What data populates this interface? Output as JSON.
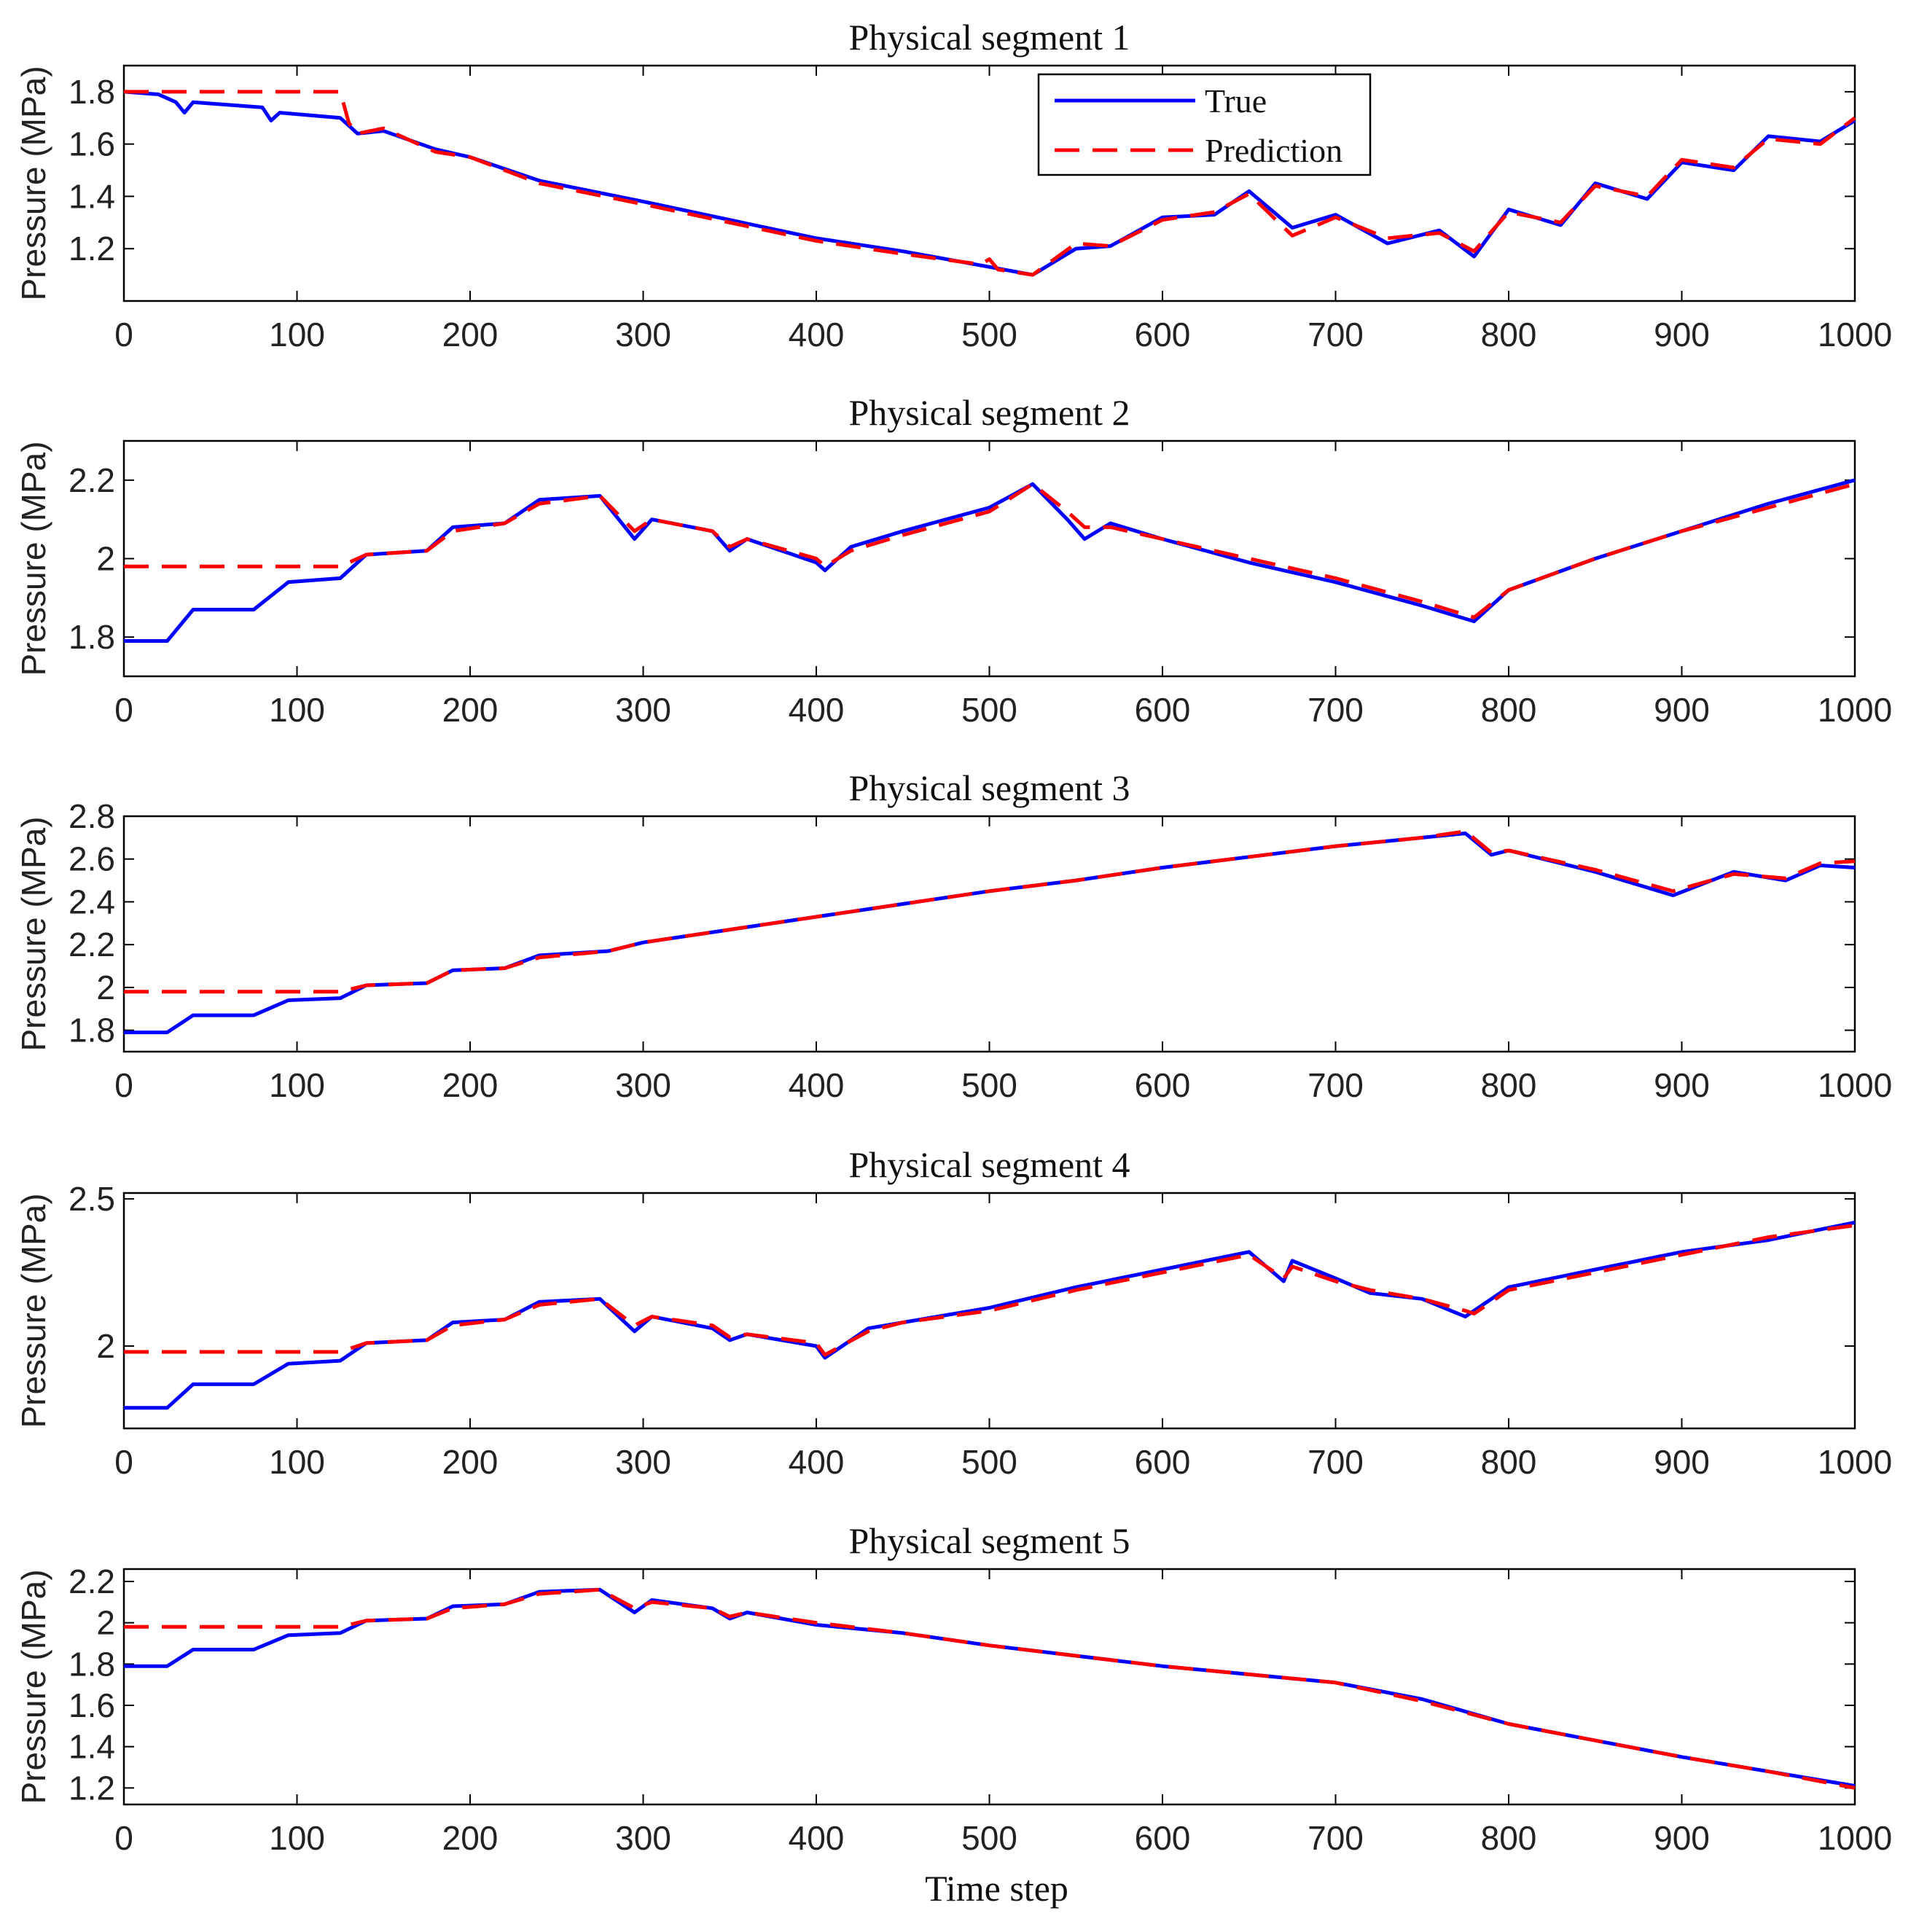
{
  "chart_data": [
    {
      "type": "line",
      "title": "Physical segment 1",
      "xlabel": "",
      "ylabel": "Pressure (MPa)",
      "xlim": [
        0,
        1000
      ],
      "ylim": [
        1.0,
        1.9
      ],
      "xticks": [
        0,
        100,
        200,
        300,
        400,
        500,
        600,
        700,
        800,
        900,
        1000
      ],
      "yticks": [
        1.2,
        1.4,
        1.6,
        1.8
      ],
      "ytick_labels": [
        "1.2",
        "1.4",
        "1.6",
        "1.8"
      ],
      "legend": {
        "placement": "top-center",
        "entries": [
          "True",
          "Prediction"
        ]
      },
      "series": [
        {
          "name": "True",
          "color": "#0000ff",
          "dash": "solid",
          "x": [
            0,
            20,
            30,
            35,
            40,
            80,
            85,
            90,
            125,
            130,
            135,
            150,
            180,
            200,
            240,
            300,
            400,
            450,
            500,
            525,
            550,
            570,
            600,
            630,
            650,
            675,
            700,
            730,
            760,
            780,
            800,
            830,
            850,
            880,
            900,
            930,
            950,
            980,
            1000
          ],
          "y": [
            1.8,
            1.79,
            1.76,
            1.72,
            1.76,
            1.74,
            1.69,
            1.72,
            1.7,
            1.67,
            1.64,
            1.65,
            1.58,
            1.55,
            1.46,
            1.38,
            1.24,
            1.19,
            1.13,
            1.1,
            1.2,
            1.21,
            1.32,
            1.33,
            1.42,
            1.28,
            1.33,
            1.22,
            1.27,
            1.17,
            1.35,
            1.29,
            1.45,
            1.39,
            1.53,
            1.5,
            1.63,
            1.61,
            1.69
          ]
        },
        {
          "name": "Prediction",
          "color": "#ff0000",
          "dash": "dashed",
          "x": [
            0,
            125,
            130,
            135,
            150,
            180,
            200,
            240,
            300,
            400,
            450,
            495,
            500,
            505,
            525,
            550,
            570,
            600,
            630,
            650,
            675,
            700,
            730,
            760,
            780,
            800,
            830,
            850,
            880,
            900,
            930,
            950,
            980,
            1000
          ],
          "y": [
            1.8,
            1.8,
            1.68,
            1.64,
            1.66,
            1.57,
            1.55,
            1.45,
            1.37,
            1.23,
            1.18,
            1.14,
            1.16,
            1.12,
            1.1,
            1.22,
            1.21,
            1.31,
            1.34,
            1.41,
            1.25,
            1.32,
            1.24,
            1.26,
            1.19,
            1.34,
            1.3,
            1.44,
            1.4,
            1.54,
            1.51,
            1.62,
            1.6,
            1.7
          ]
        }
      ]
    },
    {
      "type": "line",
      "title": "Physical segment 2",
      "xlabel": "",
      "ylabel": "Pressure (MPa)",
      "xlim": [
        0,
        1000
      ],
      "ylim": [
        1.7,
        2.3
      ],
      "xticks": [
        0,
        100,
        200,
        300,
        400,
        500,
        600,
        700,
        800,
        900,
        1000
      ],
      "yticks": [
        1.8,
        2.0,
        2.2
      ],
      "ytick_labels": [
        "1.8",
        "2",
        "2.2"
      ],
      "series": [
        {
          "name": "True",
          "color": "#0000ff",
          "dash": "solid",
          "x": [
            0,
            25,
            40,
            75,
            95,
            125,
            140,
            175,
            190,
            220,
            240,
            275,
            295,
            305,
            340,
            350,
            360,
            400,
            405,
            420,
            450,
            500,
            525,
            545,
            555,
            570,
            600,
            650,
            700,
            750,
            780,
            800,
            850,
            900,
            950,
            1000
          ],
          "y": [
            1.79,
            1.79,
            1.87,
            1.87,
            1.94,
            1.95,
            2.01,
            2.02,
            2.08,
            2.09,
            2.15,
            2.16,
            2.05,
            2.1,
            2.07,
            2.02,
            2.05,
            1.99,
            1.97,
            2.03,
            2.07,
            2.13,
            2.19,
            2.1,
            2.05,
            2.09,
            2.05,
            1.99,
            1.94,
            1.88,
            1.84,
            1.92,
            2.0,
            2.07,
            2.14,
            2.2
          ]
        },
        {
          "name": "Prediction",
          "color": "#ff0000",
          "dash": "dashed",
          "x": [
            0,
            125,
            140,
            175,
            190,
            220,
            240,
            275,
            295,
            305,
            340,
            350,
            360,
            400,
            405,
            420,
            450,
            500,
            525,
            545,
            555,
            570,
            600,
            650,
            700,
            750,
            780,
            800,
            850,
            900,
            950,
            1000
          ],
          "y": [
            1.98,
            1.98,
            2.01,
            2.02,
            2.07,
            2.09,
            2.14,
            2.16,
            2.07,
            2.1,
            2.07,
            2.03,
            2.05,
            2.0,
            1.98,
            2.02,
            2.06,
            2.12,
            2.19,
            2.12,
            2.08,
            2.08,
            2.05,
            2.0,
            1.95,
            1.89,
            1.85,
            1.92,
            2.0,
            2.07,
            2.13,
            2.19
          ]
        }
      ]
    },
    {
      "type": "line",
      "title": "Physical segment 3",
      "xlabel": "",
      "ylabel": "Pressure (MPa)",
      "xlim": [
        0,
        1000
      ],
      "ylim": [
        1.7,
        2.8
      ],
      "xticks": [
        0,
        100,
        200,
        300,
        400,
        500,
        600,
        700,
        800,
        900,
        1000
      ],
      "yticks": [
        1.8,
        2.0,
        2.2,
        2.4,
        2.6,
        2.8
      ],
      "ytick_labels": [
        "1.8",
        "2",
        "2.2",
        "2.4",
        "2.6",
        "2.8"
      ],
      "series": [
        {
          "name": "True",
          "color": "#0000ff",
          "dash": "solid",
          "x": [
            0,
            25,
            40,
            75,
            95,
            125,
            140,
            175,
            190,
            220,
            240,
            280,
            300,
            350,
            400,
            450,
            500,
            550,
            600,
            650,
            700,
            750,
            775,
            790,
            800,
            850,
            895,
            930,
            960,
            980,
            1000
          ],
          "y": [
            1.79,
            1.79,
            1.87,
            1.87,
            1.94,
            1.95,
            2.01,
            2.02,
            2.08,
            2.09,
            2.15,
            2.17,
            2.21,
            2.27,
            2.33,
            2.39,
            2.45,
            2.5,
            2.56,
            2.61,
            2.66,
            2.7,
            2.72,
            2.62,
            2.64,
            2.54,
            2.43,
            2.54,
            2.5,
            2.57,
            2.56
          ]
        },
        {
          "name": "Prediction",
          "color": "#ff0000",
          "dash": "dashed",
          "x": [
            0,
            125,
            140,
            175,
            190,
            220,
            240,
            280,
            300,
            350,
            400,
            450,
            500,
            550,
            600,
            650,
            700,
            750,
            775,
            790,
            800,
            850,
            895,
            930,
            960,
            980,
            1000
          ],
          "y": [
            1.98,
            1.98,
            2.01,
            2.02,
            2.08,
            2.09,
            2.14,
            2.17,
            2.21,
            2.27,
            2.33,
            2.39,
            2.45,
            2.5,
            2.56,
            2.61,
            2.66,
            2.7,
            2.73,
            2.63,
            2.64,
            2.55,
            2.45,
            2.53,
            2.51,
            2.58,
            2.59
          ]
        }
      ]
    },
    {
      "type": "line",
      "title": "Physical segment 4",
      "xlabel": "",
      "ylabel": "Pressure (MPa)",
      "xlim": [
        0,
        1000
      ],
      "ylim": [
        1.72,
        2.52
      ],
      "xticks": [
        0,
        100,
        200,
        300,
        400,
        500,
        600,
        700,
        800,
        900,
        1000
      ],
      "yticks": [
        2.0,
        2.5
      ],
      "ytick_labels": [
        "2",
        "2.5"
      ],
      "series": [
        {
          "name": "True",
          "color": "#0000ff",
          "dash": "solid",
          "x": [
            0,
            25,
            40,
            75,
            95,
            125,
            140,
            175,
            190,
            220,
            240,
            275,
            295,
            305,
            340,
            350,
            360,
            400,
            405,
            430,
            450,
            500,
            550,
            600,
            650,
            670,
            675,
            700,
            720,
            750,
            775,
            780,
            800,
            850,
            900,
            950,
            1000
          ],
          "y": [
            1.79,
            1.79,
            1.87,
            1.87,
            1.94,
            1.95,
            2.01,
            2.02,
            2.08,
            2.09,
            2.15,
            2.16,
            2.05,
            2.1,
            2.06,
            2.02,
            2.04,
            2.0,
            1.96,
            2.06,
            2.08,
            2.13,
            2.2,
            2.26,
            2.32,
            2.22,
            2.29,
            2.23,
            2.18,
            2.16,
            2.1,
            2.12,
            2.2,
            2.26,
            2.32,
            2.36,
            2.42
          ]
        },
        {
          "name": "Prediction",
          "color": "#ff0000",
          "dash": "dashed",
          "x": [
            0,
            125,
            140,
            175,
            190,
            220,
            240,
            275,
            295,
            305,
            340,
            350,
            360,
            400,
            405,
            430,
            450,
            500,
            550,
            600,
            650,
            670,
            675,
            700,
            720,
            750,
            775,
            780,
            800,
            850,
            900,
            950,
            1000
          ],
          "y": [
            1.98,
            1.98,
            2.01,
            2.02,
            2.07,
            2.09,
            2.14,
            2.16,
            2.07,
            2.1,
            2.07,
            2.03,
            2.04,
            2.01,
            1.97,
            2.05,
            2.08,
            2.12,
            2.19,
            2.25,
            2.31,
            2.23,
            2.27,
            2.22,
            2.19,
            2.16,
            2.12,
            2.11,
            2.19,
            2.25,
            2.31,
            2.37,
            2.41
          ]
        }
      ]
    },
    {
      "type": "line",
      "title": "Physical segment 5",
      "xlabel": "Time step",
      "ylabel": "Pressure (MPa)",
      "xlim": [
        0,
        1000
      ],
      "ylim": [
        1.12,
        2.26
      ],
      "xticks": [
        0,
        100,
        200,
        300,
        400,
        500,
        600,
        700,
        800,
        900,
        1000
      ],
      "yticks": [
        1.2,
        1.4,
        1.6,
        1.8,
        2.0,
        2.2
      ],
      "ytick_labels": [
        "1.2",
        "1.4",
        "1.6",
        "1.8",
        "2",
        "2.2"
      ],
      "series": [
        {
          "name": "True",
          "color": "#0000ff",
          "dash": "solid",
          "x": [
            0,
            25,
            40,
            75,
            95,
            125,
            140,
            175,
            190,
            220,
            240,
            275,
            295,
            305,
            340,
            350,
            360,
            400,
            450,
            500,
            550,
            600,
            650,
            700,
            750,
            800,
            850,
            900,
            950,
            1000
          ],
          "y": [
            1.79,
            1.79,
            1.87,
            1.87,
            1.94,
            1.95,
            2.01,
            2.02,
            2.08,
            2.09,
            2.15,
            2.16,
            2.05,
            2.11,
            2.07,
            2.02,
            2.05,
            1.99,
            1.95,
            1.89,
            1.84,
            1.79,
            1.75,
            1.71,
            1.63,
            1.51,
            1.43,
            1.35,
            1.28,
            1.21
          ]
        },
        {
          "name": "Prediction",
          "color": "#ff0000",
          "dash": "dashed",
          "x": [
            0,
            125,
            140,
            175,
            190,
            220,
            240,
            275,
            295,
            305,
            340,
            350,
            360,
            400,
            450,
            500,
            550,
            600,
            650,
            700,
            750,
            800,
            850,
            900,
            950,
            1000
          ],
          "y": [
            1.98,
            1.98,
            2.01,
            2.02,
            2.07,
            2.09,
            2.14,
            2.16,
            2.07,
            2.1,
            2.07,
            2.03,
            2.05,
            2.0,
            1.95,
            1.89,
            1.84,
            1.79,
            1.75,
            1.71,
            1.62,
            1.51,
            1.43,
            1.35,
            1.28,
            1.2
          ]
        }
      ]
    }
  ]
}
